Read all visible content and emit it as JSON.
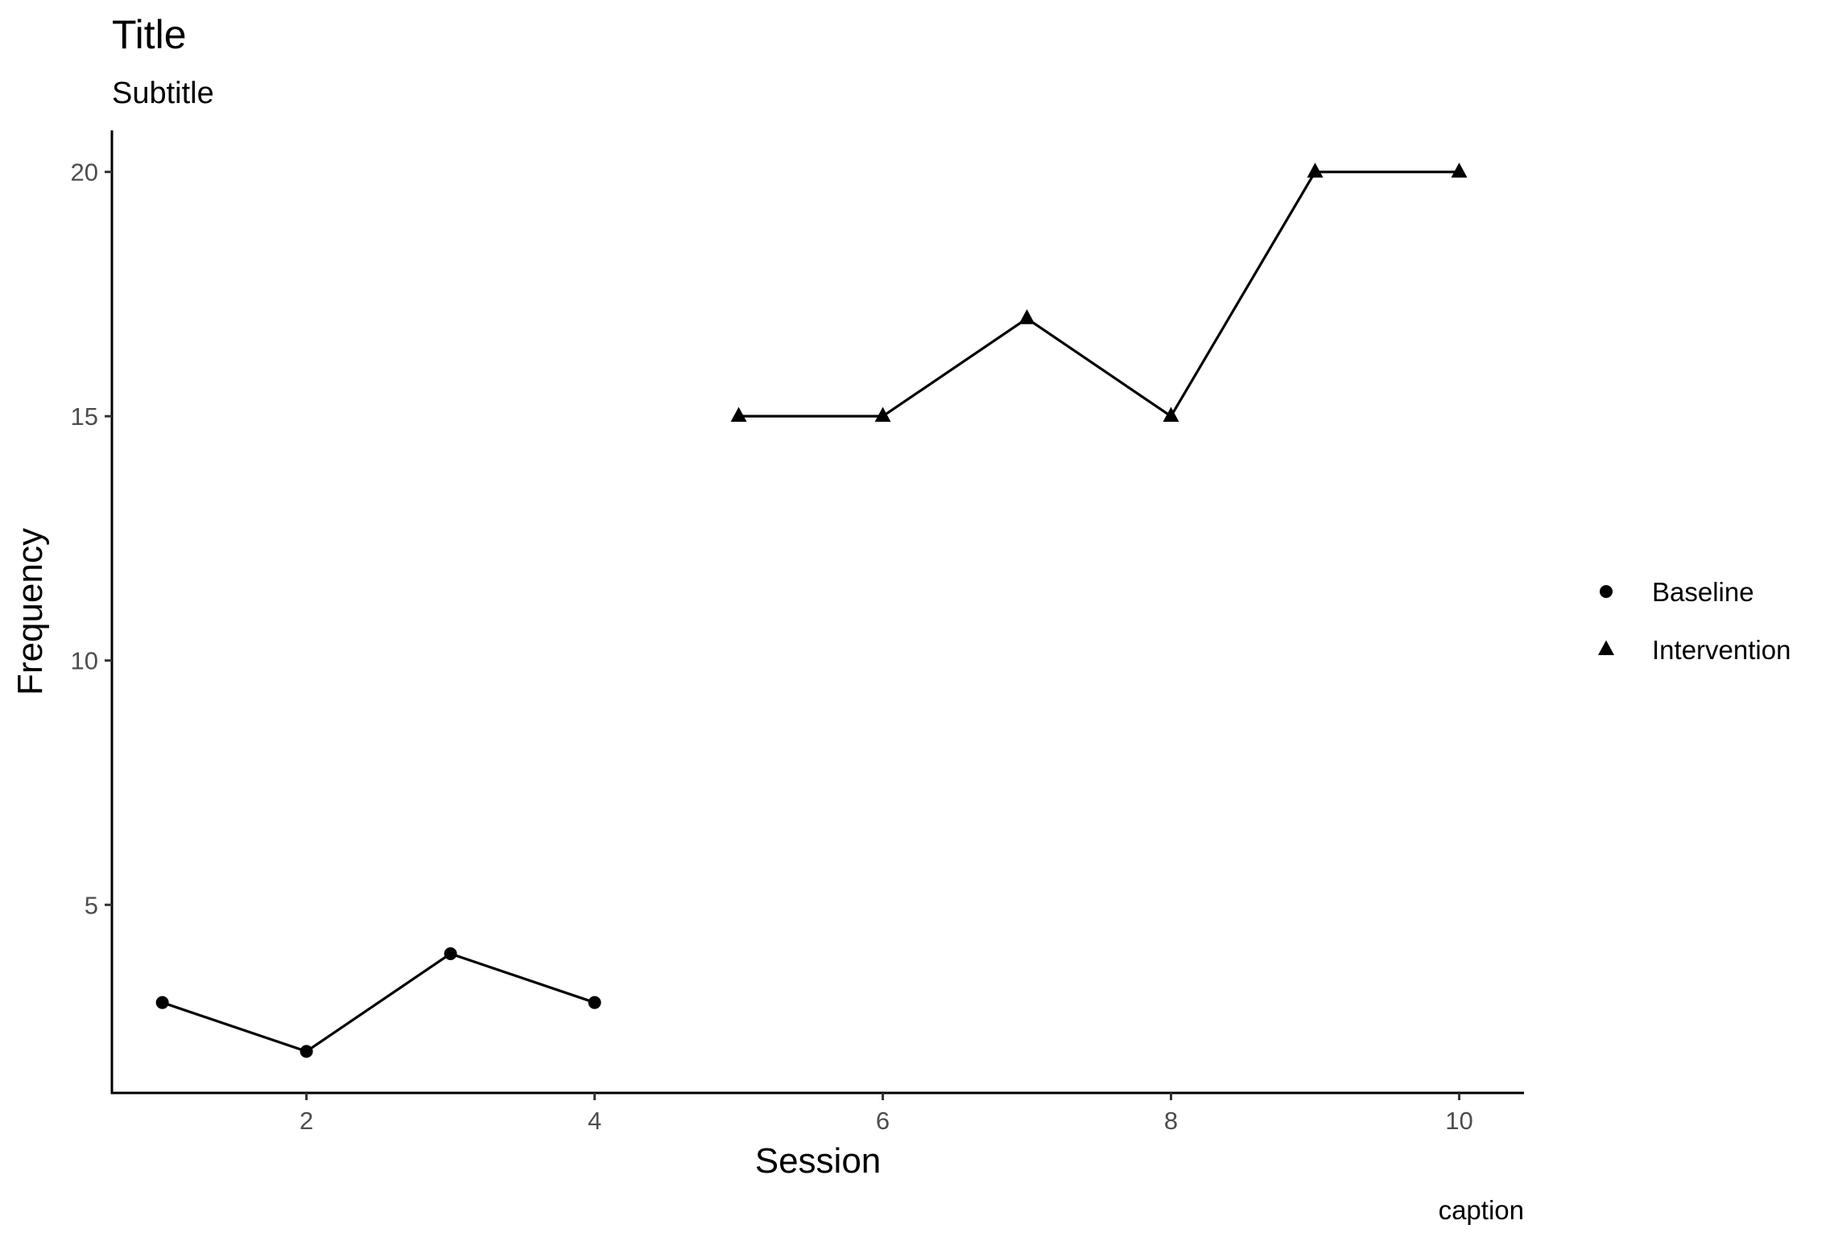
{
  "chart_data": {
    "type": "line",
    "title": "Title",
    "subtitle": "Subtitle",
    "caption": "caption",
    "xlabel": "Session",
    "ylabel": "Frequency",
    "xlim": [
      0.65,
      10.45
    ],
    "ylim": [
      1.15,
      20.85
    ],
    "x_ticks": [
      2,
      4,
      6,
      8,
      10
    ],
    "y_ticks": [
      5,
      10,
      15,
      20
    ],
    "grid": false,
    "legend_position": "right",
    "series": [
      {
        "name": "Baseline",
        "marker": "circle",
        "color": "#000000",
        "x": [
          1,
          2,
          3,
          4
        ],
        "y": [
          3,
          2,
          4,
          3
        ]
      },
      {
        "name": "Intervention",
        "marker": "triangle",
        "color": "#000000",
        "x": [
          5,
          6,
          7,
          8,
          9,
          10
        ],
        "y": [
          15,
          15,
          17,
          15,
          20,
          20
        ]
      }
    ]
  }
}
